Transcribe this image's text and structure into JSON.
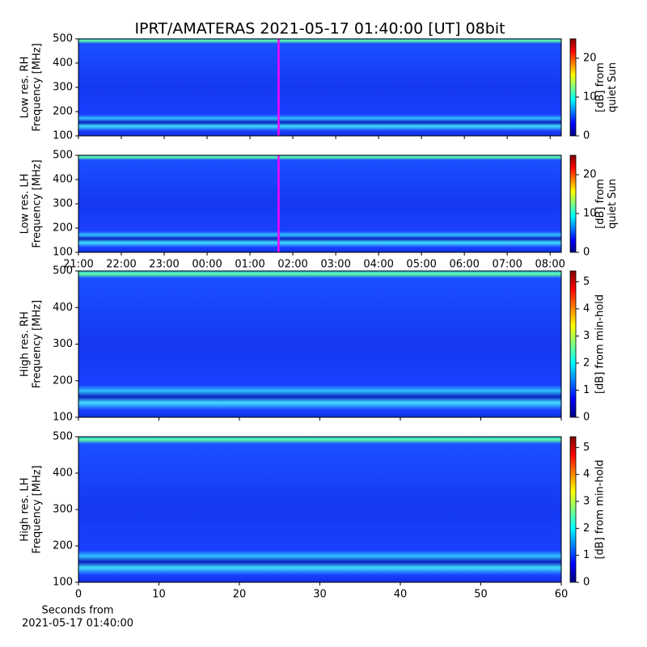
{
  "chart_data": [
    {
      "type": "heatmap",
      "title": "IPRT/AMATERAS 2021-05-17 01:40:00 [UT]   08bit",
      "ylabel": [
        "Low res. RH",
        "Frequency [MHz]"
      ],
      "ylim": [
        100,
        500
      ],
      "yticks": [
        100,
        200,
        300,
        400,
        500
      ],
      "xlim": [
        0,
        11.26
      ],
      "xticks": [
        0,
        1,
        2,
        3,
        4,
        5,
        6,
        7,
        8,
        9,
        10,
        11
      ],
      "marker": 4.667,
      "marker_color": "#ff00ff",
      "colorbar_label": [
        "[dB] from",
        "quiet Sun"
      ],
      "clim": [
        0,
        25
      ],
      "cticks": [
        0,
        10,
        20
      ]
    },
    {
      "type": "heatmap",
      "ylabel": [
        "Low res. LH",
        "Frequency [MHz]"
      ],
      "ylim": [
        100,
        500
      ],
      "yticks": [
        100,
        200,
        300,
        400,
        500
      ],
      "xlim": [
        0,
        11.26
      ],
      "xticks": [
        {
          "value": 0,
          "label": "21:00"
        },
        {
          "value": 1,
          "label": "22:00"
        },
        {
          "value": 2,
          "label": "23:00"
        },
        {
          "value": 3,
          "label": "00:00"
        },
        {
          "value": 4,
          "label": "01:00"
        },
        {
          "value": 5,
          "label": "02:00"
        },
        {
          "value": 6,
          "label": "03:00"
        },
        {
          "value": 7,
          "label": "04:00"
        },
        {
          "value": 8,
          "label": "05:00"
        },
        {
          "value": 9,
          "label": "06:00"
        },
        {
          "value": 10,
          "label": "07:00"
        },
        {
          "value": 11,
          "label": "08:00"
        }
      ],
      "marker": 4.667,
      "marker_color": "#ff00ff",
      "colorbar_label": [
        "[dB] from",
        "quiet Sun"
      ],
      "clim": [
        0,
        25
      ],
      "cticks": [
        0,
        10,
        20
      ]
    },
    {
      "type": "heatmap",
      "ylabel": [
        "High res. RH",
        "Frequency [MHz]"
      ],
      "ylim": [
        100,
        500
      ],
      "yticks": [
        100,
        200,
        300,
        400,
        500
      ],
      "xlim": [
        0,
        60
      ],
      "xticks": [
        0,
        10,
        20,
        30,
        40,
        50,
        60
      ],
      "colorbar_label": [
        "[dB] from min-hold"
      ],
      "clim": [
        0,
        5.4
      ],
      "cticks": [
        0,
        1,
        2,
        3,
        4,
        5
      ]
    },
    {
      "type": "heatmap",
      "ylabel": [
        "High res. LH",
        "Frequency [MHz]"
      ],
      "ylim": [
        100,
        500
      ],
      "yticks": [
        100,
        200,
        300,
        400,
        500
      ],
      "xlim": [
        0,
        60
      ],
      "xticks": [
        0,
        10,
        20,
        30,
        40,
        50,
        60
      ],
      "xlabel": [
        "Seconds from",
        "2021-05-17 01:40:00"
      ],
      "colorbar_label": [
        "[dB] from min-hold"
      ],
      "clim": [
        0,
        5.4
      ],
      "cticks": [
        0,
        1,
        2,
        3,
        4,
        5
      ]
    }
  ]
}
